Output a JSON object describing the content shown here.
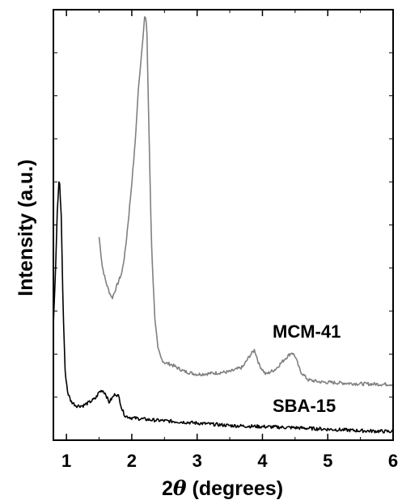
{
  "chart_data": {
    "type": "line",
    "xlabel": "2θ (degrees)",
    "xlabel_prefix": "2",
    "xlabel_symbol": "θ",
    "xlabel_suffix": " (degrees)",
    "ylabel": "Intensity (a.u.)",
    "xlim": [
      0.8,
      6
    ],
    "ylim": [
      0,
      100
    ],
    "x_ticks": [
      1,
      2,
      3,
      4,
      5,
      6
    ],
    "x_tick_labels": [
      "1",
      "2",
      "3",
      "4",
      "5",
      "6"
    ],
    "y_tick_labels_shown": false,
    "grid": false,
    "colors": {
      "SBA-15": "#000000",
      "MCM-41": "#808080",
      "axis": "#000000"
    },
    "series": [
      {
        "name": "MCM-41",
        "label_position": "above-right",
        "x": [
          1.5,
          1.55,
          1.6,
          1.65,
          1.7,
          1.75,
          1.8,
          1.85,
          1.9,
          1.95,
          2.0,
          2.05,
          2.1,
          2.15,
          2.2,
          2.23,
          2.26,
          2.3,
          2.35,
          2.4,
          2.45,
          2.5,
          2.6,
          2.8,
          3.0,
          3.2,
          3.5,
          3.7,
          3.8,
          3.88,
          3.95,
          4.05,
          4.2,
          4.35,
          4.45,
          4.5,
          4.58,
          4.7,
          4.9,
          5.2,
          5.5,
          5.8,
          6.0
        ],
        "values": [
          47.2,
          40.2,
          37.0,
          34.6,
          33.0,
          35.0,
          37.0,
          39.0,
          44.0,
          51.5,
          59.7,
          68.8,
          81.2,
          90.0,
          98.9,
          96.0,
          74.0,
          46.5,
          29.0,
          21.2,
          19.0,
          18.0,
          17.6,
          16.0,
          15.3,
          15.5,
          15.9,
          17.0,
          19.5,
          21.0,
          17.5,
          15.3,
          16.5,
          19.0,
          20.4,
          19.5,
          16.0,
          14.0,
          13.5,
          13.3,
          13.1,
          13.0,
          13.0
        ]
      },
      {
        "name": "SBA-15",
        "label_position": "right",
        "x": [
          0.8,
          0.83,
          0.86,
          0.89,
          0.92,
          0.95,
          0.98,
          1.02,
          1.07,
          1.15,
          1.25,
          1.35,
          1.45,
          1.5,
          1.55,
          1.6,
          1.65,
          1.7,
          1.75,
          1.8,
          1.85,
          1.9,
          2.0,
          2.3,
          2.8,
          3.5,
          4.5,
          5.5,
          6.0
        ],
        "values": [
          27.0,
          38.0,
          53.0,
          61.5,
          52.0,
          30.0,
          16.0,
          11.0,
          9.0,
          8.0,
          8.0,
          8.8,
          9.8,
          11.2,
          11.6,
          10.8,
          8.8,
          9.8,
          10.8,
          10.2,
          7.2,
          5.6,
          5.2,
          4.7,
          4.2,
          3.4,
          2.9,
          2.2,
          2.0
        ]
      }
    ]
  }
}
